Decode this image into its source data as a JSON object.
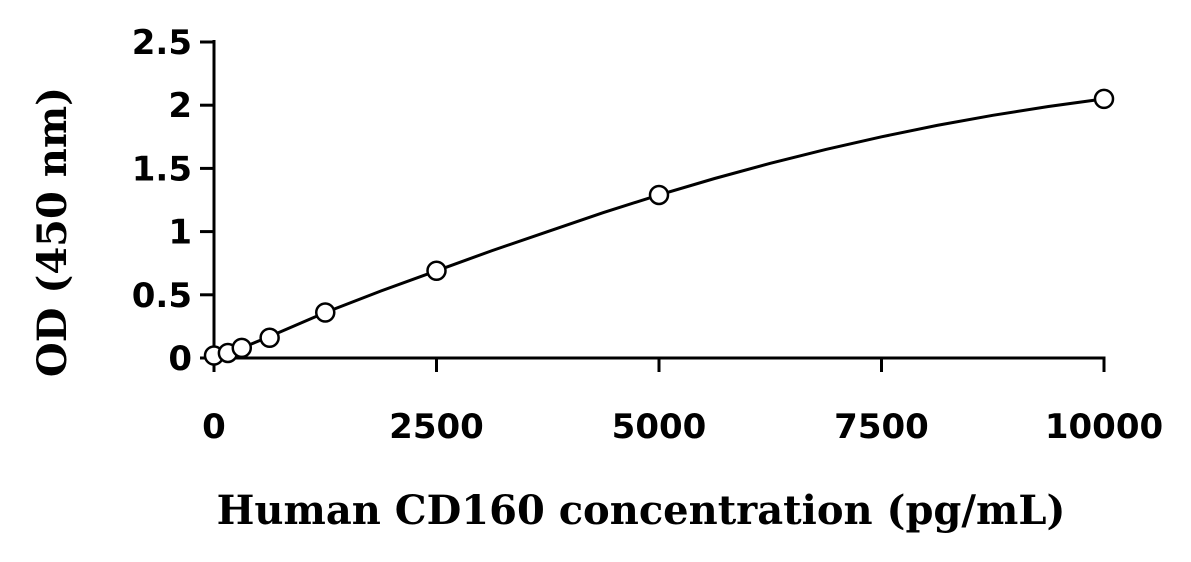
{
  "chart_data": {
    "type": "scatter",
    "title": "",
    "xlabel": "Human CD160 concentration (pg/mL)",
    "ylabel": "OD (450 nm)",
    "xlim": [
      0,
      10000
    ],
    "ylim": [
      0,
      2.5
    ],
    "x_ticks": [
      "0",
      "2500",
      "5000",
      "7500",
      "10000"
    ],
    "y_ticks": [
      "0",
      "0.5",
      "1",
      "1.5",
      "2",
      "2.5"
    ],
    "grid": false,
    "legend": "none",
    "series": [
      {
        "marker": "open-circle",
        "x": [
          0,
          156,
          312,
          625,
          1250,
          2500,
          5000,
          10000
        ],
        "y": [
          0.02,
          0.04,
          0.08,
          0.16,
          0.36,
          0.69,
          1.29,
          2.05
        ]
      }
    ],
    "fit_curve": {
      "x": [
        0,
        156,
        312,
        625,
        1250,
        1875,
        2500,
        3125,
        3750,
        4375,
        5000,
        5625,
        6250,
        6875,
        7500,
        8125,
        8750,
        9375,
        10000
      ],
      "y": [
        0.01,
        0.04,
        0.08,
        0.17,
        0.36,
        0.53,
        0.69,
        0.85,
        1.0,
        1.15,
        1.29,
        1.42,
        1.54,
        1.65,
        1.75,
        1.84,
        1.92,
        1.99,
        2.05
      ]
    },
    "colors": {
      "line": "#000000",
      "marker_fill": "#ffffff",
      "background": "#ffffff"
    }
  }
}
